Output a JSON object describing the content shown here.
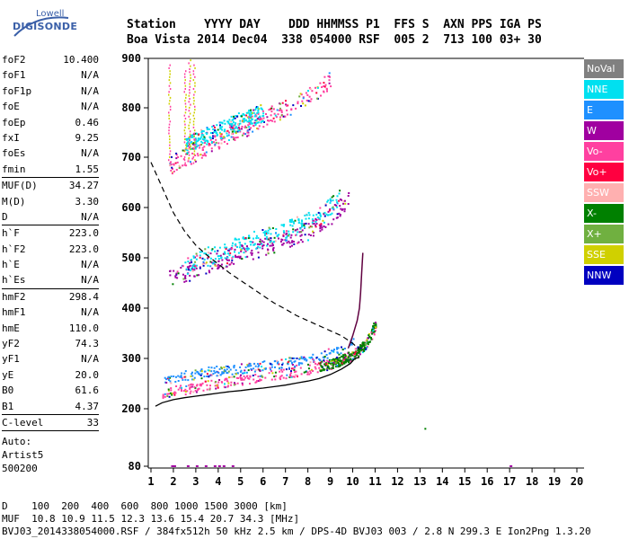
{
  "brand": {
    "line1": "Lowell",
    "line2": "DIGISONDE",
    "color": "#3a5fa8"
  },
  "header": {
    "row1": "Station    YYYY DAY    DDD HHMMSS P1  FFS S  AXN PPS IGA PS",
    "row2": "Boa Vista 2014 Dec04  338 054000 RSF  005 2  713 100 03+ 30"
  },
  "params": [
    {
      "name": "foF2",
      "value": "10.400"
    },
    {
      "name": "foF1",
      "value": "N/A"
    },
    {
      "name": "foF1p",
      "value": "N/A"
    },
    {
      "name": "foE",
      "value": "N/A"
    },
    {
      "name": "foEp",
      "value": "0.46"
    },
    {
      "name": "fxI",
      "value": "9.25"
    },
    {
      "name": "foEs",
      "value": "N/A"
    },
    {
      "name": "fmin",
      "value": "1.55"
    },
    {
      "sep": true
    },
    {
      "name": "MUF(D)",
      "value": "34.27"
    },
    {
      "name": "M(D)",
      "value": "3.30"
    },
    {
      "name": "D",
      "value": "N/A"
    },
    {
      "sep": true
    },
    {
      "name": "h`F",
      "value": "223.0"
    },
    {
      "name": "h`F2",
      "value": "223.0"
    },
    {
      "name": "h`E",
      "value": "N/A"
    },
    {
      "name": "h`Es",
      "value": "N/A"
    },
    {
      "sep": true
    },
    {
      "name": "hmF2",
      "value": "298.4"
    },
    {
      "name": "hmF1",
      "value": "N/A"
    },
    {
      "name": "hmE",
      "value": "110.0"
    },
    {
      "name": "yF2",
      "value": "74.3"
    },
    {
      "name": "yF1",
      "value": "N/A"
    },
    {
      "name": "yE",
      "value": "20.0"
    },
    {
      "name": "B0",
      "value": "61.6"
    },
    {
      "name": "B1",
      "value": "4.37"
    },
    {
      "sep": true
    },
    {
      "name": "C-level",
      "value": "33"
    },
    {
      "sep": true
    }
  ],
  "auto": {
    "line1": "Auto:",
    "line2": "Artist5",
    "line3": "500200"
  },
  "footer": {
    "line1": "D    100  200  400  600  800 1000 1500 3000 [km]",
    "line2": "MUF  10.8 10.9 11.5 12.3 13.6 15.4 20.7 34.3 [MHz]",
    "line3": "BVJ03_2014338054000.RSF / 384fx512h 50 kHz 2.5 km / DPS-4D BVJ03 003 / 2.8 N 299.3 E Ion2Png 1.3.20"
  },
  "legend": [
    {
      "label": "NoVal",
      "color": "#808080"
    },
    {
      "label": "NNE",
      "color": "#00e0f0"
    },
    {
      "label": "E",
      "color": "#1e90ff"
    },
    {
      "label": "W",
      "color": "#a000a0"
    },
    {
      "label": "Vo-",
      "color": "#ff40a0"
    },
    {
      "label": "Vo+",
      "color": "#ff0040"
    },
    {
      "label": "SSW",
      "color": "#ffb0b0"
    },
    {
      "label": "X-",
      "color": "#008000"
    },
    {
      "label": "X+",
      "color": "#70b040"
    },
    {
      "label": "SSE",
      "color": "#d0d000"
    },
    {
      "label": "NNW",
      "color": "#0000c0"
    }
  ],
  "chart_data": {
    "type": "scatter",
    "xlim": [
      1,
      20
    ],
    "ylim": [
      80,
      900
    ],
    "x_ticks": [
      1,
      2,
      3,
      4,
      5,
      6,
      7,
      8,
      9,
      10,
      11,
      12,
      13,
      14,
      15,
      16,
      17,
      18,
      19,
      20
    ],
    "y_ticks": [
      80,
      200,
      300,
      400,
      500,
      600,
      700,
      800,
      900
    ],
    "grid": false,
    "legend_position": "right",
    "series": [
      {
        "type": "traces",
        "color": "#ff40a0",
        "x": [
          1.5,
          2.0,
          2.5,
          3.0,
          3.5,
          4.0,
          4.5,
          5.0,
          5.5,
          6.0,
          6.5,
          7.0,
          7.5,
          8.0,
          8.5,
          9.0,
          9.5,
          10.0,
          10.3,
          10.6,
          10.8,
          11.0
        ],
        "y": [
          231,
          236,
          240,
          244,
          248,
          252,
          256,
          259,
          262,
          265,
          268,
          272,
          276,
          280,
          285,
          292,
          300,
          310,
          318,
          330,
          345,
          365
        ]
      },
      {
        "type": "traces",
        "color": "#008000",
        "x": [
          8.5,
          9.0,
          9.5,
          10.0,
          10.3,
          10.6,
          10.8,
          11.0
        ],
        "y": [
          285,
          290,
          298,
          308,
          318,
          332,
          350,
          372
        ]
      },
      {
        "type": "traces",
        "color": "#1e90ff",
        "x": [
          1.5,
          2.0,
          2.5,
          3.0,
          3.5,
          4.0,
          4.5,
          5.0,
          5.5,
          6.0,
          6.5,
          7.0,
          7.5,
          8.0,
          8.5,
          9.0,
          9.5,
          10.0
        ],
        "y": [
          255,
          260,
          268,
          270,
          274,
          277,
          279,
          281,
          283,
          286,
          289,
          292,
          296,
          300,
          305,
          312,
          320,
          332
        ]
      },
      {
        "type": "traces",
        "color": "#a000a0",
        "x": [
          1.8,
          2.5,
          3.0,
          3.5,
          4.0,
          4.5,
          5.0,
          5.5,
          6.0,
          6.5,
          7.0,
          7.5,
          8.0,
          8.5,
          9.0,
          9.4,
          9.8
        ],
        "y": [
          460,
          470,
          480,
          488,
          495,
          503,
          510,
          516,
          522,
          530,
          538,
          546,
          555,
          568,
          585,
          600,
          620
        ]
      },
      {
        "type": "traces",
        "color": "#00e0f0",
        "x": [
          2.5,
          3.0,
          3.5,
          4.0,
          4.5,
          5.0,
          5.5,
          6.0,
          6.5,
          7.0,
          7.5,
          8.0,
          8.5,
          9.0,
          9.4
        ],
        "y": [
          485,
          495,
          505,
          512,
          520,
          528,
          535,
          542,
          550,
          557,
          565,
          575,
          588,
          605,
          625
        ]
      },
      {
        "type": "traces",
        "color": "#ff40a0",
        "x": [
          1.8,
          2.0,
          2.5,
          3.0,
          3.5,
          4.0,
          4.5,
          5.0,
          5.5,
          6.0,
          6.5,
          7.0,
          7.5,
          8.0,
          8.5,
          9.0
        ],
        "y": [
          680,
          690,
          700,
          712,
          723,
          735,
          745,
          756,
          768,
          780,
          790,
          800,
          812,
          825,
          840,
          860
        ]
      },
      {
        "type": "traces",
        "color": "#00e0f0",
        "x": [
          2.5,
          3.0,
          3.5,
          4.0,
          4.5,
          5.0,
          5.5,
          6.0
        ],
        "y": [
          725,
          735,
          745,
          755,
          765,
          775,
          783,
          792
        ]
      }
    ],
    "model_profile": {
      "x": [
        1.2,
        1.5,
        2.0,
        2.5,
        3.0,
        3.5,
        4.0,
        4.5,
        5.0,
        5.5,
        6.0,
        6.5,
        7.0,
        7.5,
        8.0,
        8.5,
        9.0,
        9.5,
        9.9,
        10.1,
        10.3
      ],
      "y": [
        205,
        212,
        218,
        222,
        225,
        228,
        231,
        234,
        236,
        239,
        241,
        244,
        247,
        251,
        255,
        260,
        268,
        279,
        290,
        300,
        302
      ]
    },
    "iono_trace": {
      "x": [
        9.8,
        10.0,
        10.2,
        10.3,
        10.35,
        10.4,
        10.45
      ],
      "y": [
        320,
        345,
        375,
        400,
        430,
        470,
        510
      ]
    },
    "muf_curve": {
      "x": [
        1.0,
        1.5,
        2.0,
        2.5,
        3.0,
        3.5,
        4.0,
        4.5,
        5.0,
        5.5,
        6.0,
        6.5,
        7.0,
        7.5,
        8.0,
        8.5,
        9.0,
        9.5,
        10.0,
        10.3
      ],
      "y": [
        690,
        640,
        590,
        553,
        525,
        505,
        488,
        470,
        455,
        440,
        425,
        410,
        398,
        385,
        375,
        365,
        355,
        345,
        330,
        318
      ]
    },
    "sporadic_vertical": {
      "x": [
        1.8,
        2.5,
        2.7,
        2.9
      ],
      "y_low": [
        690,
        690,
        700,
        690
      ],
      "y_high": [
        890,
        880,
        900,
        890
      ]
    }
  }
}
